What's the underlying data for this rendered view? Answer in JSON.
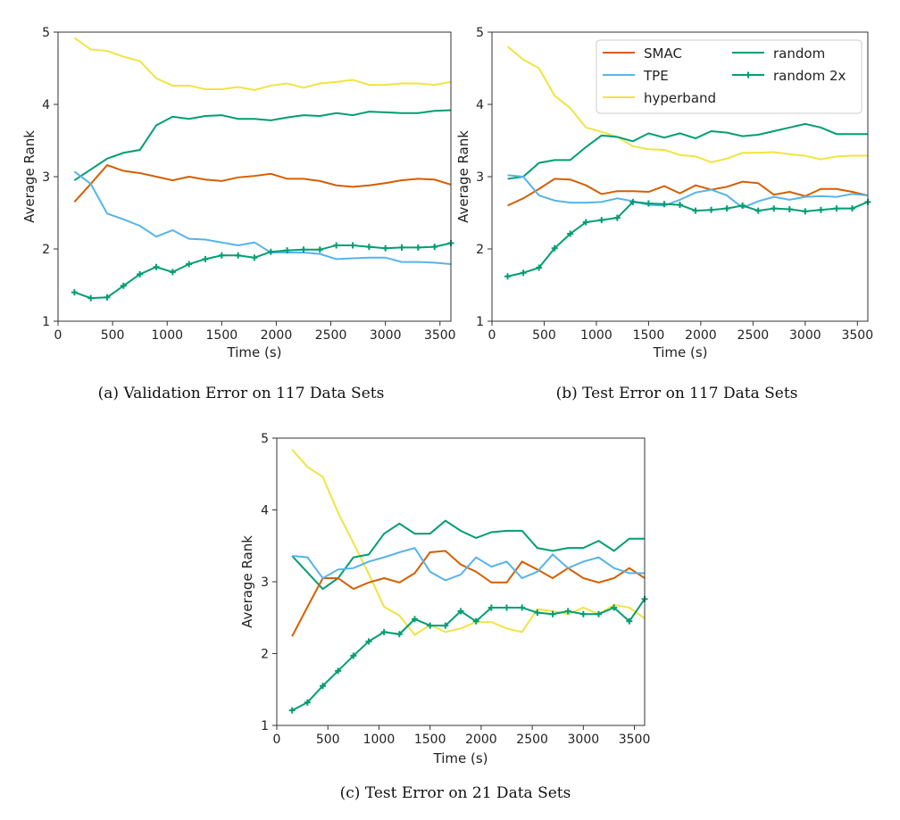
{
  "colors": {
    "SMAC": "#d55e00",
    "TPE": "#56b4e9",
    "hyperband": "#f0e442",
    "random": "#009e73",
    "random 2x": "#009e73"
  },
  "legend": {
    "placement": "top-right",
    "entries": [
      {
        "name": "SMAC",
        "marker": "none"
      },
      {
        "name": "TPE",
        "marker": "none"
      },
      {
        "name": "hyperband",
        "marker": "none"
      },
      {
        "name": "random",
        "marker": "none"
      },
      {
        "name": "random 2x",
        "marker": "plus"
      }
    ]
  },
  "chart_data": [
    {
      "type": "line",
      "caption": "(a)  Validation Error on 117 Data Sets",
      "xlabel": "Time (s)",
      "ylabel": "Average Rank",
      "xlim": [
        0,
        3600
      ],
      "ylim": [
        1,
        5
      ],
      "xticks": [
        0,
        500,
        1000,
        1500,
        2000,
        2500,
        3000,
        3500
      ],
      "yticks": [
        1,
        2,
        3,
        4,
        5
      ],
      "grid": false,
      "legend": false,
      "x": [
        150,
        300,
        450,
        600,
        750,
        900,
        1050,
        1200,
        1350,
        1500,
        1650,
        1800,
        1950,
        2100,
        2250,
        2400,
        2550,
        2700,
        2850,
        3000,
        3150,
        3300,
        3450,
        3600
      ],
      "series": [
        {
          "name": "SMAC",
          "values": [
            2.65,
            2.9,
            3.16,
            3.08,
            3.05,
            3.0,
            2.95,
            3.0,
            2.96,
            2.94,
            2.99,
            3.01,
            3.04,
            2.97,
            2.97,
            2.94,
            2.88,
            2.86,
            2.88,
            2.91,
            2.95,
            2.97,
            2.96,
            2.89
          ]
        },
        {
          "name": "TPE",
          "values": [
            3.07,
            2.9,
            2.49,
            2.41,
            2.32,
            2.17,
            2.26,
            2.14,
            2.13,
            2.09,
            2.05,
            2.09,
            1.95,
            1.95,
            1.95,
            1.93,
            1.86,
            1.87,
            1.88,
            1.88,
            1.82,
            1.82,
            1.81,
            1.79
          ]
        },
        {
          "name": "hyperband",
          "values": [
            4.92,
            4.76,
            4.74,
            4.66,
            4.6,
            4.36,
            4.26,
            4.26,
            4.21,
            4.21,
            4.24,
            4.2,
            4.26,
            4.29,
            4.23,
            4.29,
            4.31,
            4.34,
            4.27,
            4.27,
            4.29,
            4.29,
            4.27,
            4.31
          ]
        },
        {
          "name": "random",
          "values": [
            2.95,
            3.1,
            3.25,
            3.33,
            3.37,
            3.71,
            3.83,
            3.8,
            3.84,
            3.85,
            3.8,
            3.8,
            3.78,
            3.82,
            3.85,
            3.84,
            3.88,
            3.85,
            3.9,
            3.89,
            3.88,
            3.88,
            3.91,
            3.92
          ]
        },
        {
          "name": "random 2x",
          "values": [
            1.4,
            1.32,
            1.33,
            1.49,
            1.65,
            1.75,
            1.68,
            1.79,
            1.86,
            1.91,
            1.91,
            1.88,
            1.96,
            1.98,
            1.99,
            1.99,
            2.05,
            2.05,
            2.03,
            2.01,
            2.02,
            2.02,
            2.03,
            2.08
          ]
        }
      ]
    },
    {
      "type": "line",
      "caption": "(b)  Test Error on 117 Data Sets",
      "xlabel": "Time (s)",
      "ylabel": "Average Rank",
      "xlim": [
        0,
        3600
      ],
      "ylim": [
        1,
        5
      ],
      "xticks": [
        0,
        500,
        1000,
        1500,
        2000,
        2500,
        3000,
        3500
      ],
      "yticks": [
        1,
        2,
        3,
        4,
        5
      ],
      "grid": false,
      "legend": true,
      "x": [
        150,
        300,
        450,
        600,
        750,
        900,
        1050,
        1200,
        1350,
        1500,
        1650,
        1800,
        1950,
        2100,
        2250,
        2400,
        2550,
        2700,
        2850,
        3000,
        3150,
        3300,
        3450,
        3600
      ],
      "series": [
        {
          "name": "SMAC",
          "values": [
            2.6,
            2.7,
            2.83,
            2.97,
            2.96,
            2.88,
            2.76,
            2.8,
            2.8,
            2.79,
            2.87,
            2.77,
            2.88,
            2.82,
            2.86,
            2.93,
            2.91,
            2.75,
            2.79,
            2.73,
            2.83,
            2.83,
            2.79,
            2.74
          ]
        },
        {
          "name": "TPE",
          "values": [
            3.02,
            3.0,
            2.74,
            2.67,
            2.64,
            2.64,
            2.65,
            2.7,
            2.66,
            2.61,
            2.6,
            2.68,
            2.78,
            2.82,
            2.74,
            2.57,
            2.66,
            2.72,
            2.68,
            2.72,
            2.73,
            2.72,
            2.76,
            2.74
          ]
        },
        {
          "name": "hyperband",
          "values": [
            4.8,
            4.62,
            4.5,
            4.12,
            3.95,
            3.68,
            3.62,
            3.55,
            3.42,
            3.38,
            3.37,
            3.3,
            3.28,
            3.2,
            3.25,
            3.33,
            3.33,
            3.34,
            3.31,
            3.29,
            3.24,
            3.28,
            3.29,
            3.29
          ]
        },
        {
          "name": "random",
          "values": [
            2.97,
            3.0,
            3.19,
            3.23,
            3.23,
            3.41,
            3.57,
            3.55,
            3.49,
            3.6,
            3.54,
            3.6,
            3.53,
            3.63,
            3.61,
            3.56,
            3.58,
            3.63,
            3.68,
            3.73,
            3.68,
            3.59,
            3.59,
            3.59
          ]
        },
        {
          "name": "random 2x",
          "values": [
            1.62,
            1.67,
            1.74,
            2.01,
            2.21,
            2.37,
            2.4,
            2.43,
            2.65,
            2.63,
            2.62,
            2.61,
            2.53,
            2.54,
            2.56,
            2.6,
            2.53,
            2.56,
            2.55,
            2.52,
            2.54,
            2.56,
            2.56,
            2.65
          ]
        }
      ]
    },
    {
      "type": "line",
      "caption": "(c)  Test Error on 21 Data Sets",
      "xlabel": "Time (s)",
      "ylabel": "Average Rank",
      "xlim": [
        0,
        3600
      ],
      "ylim": [
        1,
        5
      ],
      "xticks": [
        0,
        500,
        1000,
        1500,
        2000,
        2500,
        3000,
        3500
      ],
      "yticks": [
        1,
        2,
        3,
        4,
        5
      ],
      "grid": false,
      "legend": false,
      "x": [
        150,
        300,
        450,
        600,
        750,
        900,
        1050,
        1200,
        1350,
        1500,
        1650,
        1800,
        1950,
        2100,
        2250,
        2400,
        2550,
        2700,
        2850,
        3000,
        3150,
        3300,
        3450,
        3600
      ],
      "series": [
        {
          "name": "SMAC",
          "values": [
            2.24,
            2.65,
            3.05,
            3.05,
            2.9,
            2.99,
            3.05,
            2.99,
            3.12,
            3.41,
            3.43,
            3.24,
            3.14,
            2.99,
            2.99,
            3.28,
            3.17,
            3.05,
            3.19,
            3.05,
            2.99,
            3.05,
            3.19,
            3.05
          ]
        },
        {
          "name": "TPE",
          "values": [
            3.36,
            3.34,
            3.05,
            3.17,
            3.19,
            3.28,
            3.34,
            3.41,
            3.47,
            3.14,
            3.02,
            3.1,
            3.34,
            3.21,
            3.28,
            3.05,
            3.14,
            3.38,
            3.19,
            3.28,
            3.34,
            3.19,
            3.12,
            3.12
          ]
        },
        {
          "name": "hyperband",
          "values": [
            4.84,
            4.6,
            4.46,
            3.96,
            3.54,
            3.11,
            2.65,
            2.53,
            2.26,
            2.4,
            2.3,
            2.35,
            2.44,
            2.44,
            2.35,
            2.3,
            2.62,
            2.59,
            2.55,
            2.64,
            2.55,
            2.68,
            2.64,
            2.49
          ]
        },
        {
          "name": "random",
          "values": [
            3.36,
            3.13,
            2.9,
            3.05,
            3.34,
            3.38,
            3.67,
            3.81,
            3.67,
            3.67,
            3.85,
            3.71,
            3.61,
            3.69,
            3.71,
            3.71,
            3.47,
            3.43,
            3.47,
            3.47,
            3.57,
            3.43,
            3.6,
            3.6
          ]
        },
        {
          "name": "random 2x",
          "values": [
            1.21,
            1.32,
            1.55,
            1.76,
            1.97,
            2.17,
            2.3,
            2.27,
            2.48,
            2.39,
            2.39,
            2.59,
            2.45,
            2.64,
            2.64,
            2.64,
            2.57,
            2.55,
            2.59,
            2.55,
            2.55,
            2.64,
            2.45,
            2.76
          ]
        }
      ]
    }
  ]
}
